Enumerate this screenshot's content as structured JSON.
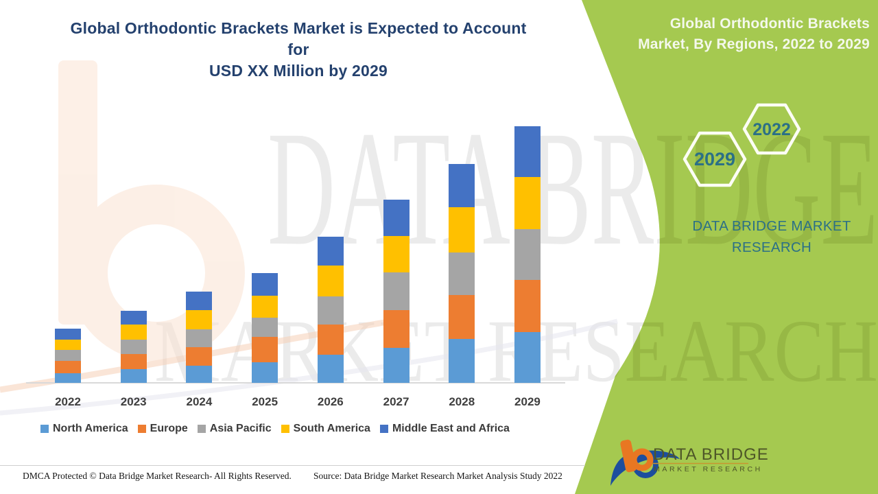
{
  "header": {
    "main_title_line1": "Global Orthodontic Brackets Market is Expected to Account for",
    "main_title_line2": "USD XX Million by 2029",
    "side_title_line1": "Global Orthodontic Brackets",
    "side_title_line2": "Market, By Regions, 2022 to 2029"
  },
  "badges": {
    "hex_front_year": "2029",
    "hex_back_year": "2022"
  },
  "brand": {
    "name_line1": "DATA BRIDGE MARKET",
    "name_line2": "RESEARCH",
    "logo_title": "DATA BRIDGE",
    "logo_subtitle": "MARKET RESEARCH"
  },
  "watermark": {
    "line1": "DATA BRIDGE",
    "line2": "MARKET RESEARCH"
  },
  "footer": {
    "dmca": "DMCA Protected © Data Bridge Market Research- All Rights Reserved.",
    "source": "Source: Data Bridge Market Research Market Analysis Study 2022"
  },
  "colors": {
    "banner_green": "#a5c950",
    "title_blue": "#24416e",
    "teal_text": "#2b7086",
    "axis_gray": "#d9d9d9"
  },
  "chart_data": {
    "type": "bar",
    "stacked": true,
    "title": "Global Orthodontic Brackets Market, By Regions, 2022 to 2029",
    "categories": [
      "2022",
      "2023",
      "2024",
      "2025",
      "2026",
      "2027",
      "2028",
      "2029"
    ],
    "series": [
      {
        "name": "North America",
        "color": "#5b9bd5",
        "values": [
          14,
          20,
          25,
          30,
          41,
          51,
          64,
          74
        ]
      },
      {
        "name": "Europe",
        "color": "#ed7d31",
        "values": [
          18,
          22,
          27,
          37,
          44,
          55,
          64,
          76
        ]
      },
      {
        "name": "Asia Pacific",
        "color": "#a5a5a5",
        "values": [
          16,
          21,
          26,
          28,
          41,
          55,
          62,
          74
        ]
      },
      {
        "name": "South America",
        "color": "#ffc000",
        "values": [
          15,
          22,
          28,
          32,
          45,
          53,
          66,
          76
        ]
      },
      {
        "name": "Middle East and Africa",
        "color": "#4472c4",
        "values": [
          16,
          20,
          27,
          33,
          42,
          53,
          63,
          74
        ]
      }
    ],
    "totals_estimated": [
      79,
      105,
      133,
      160,
      213,
      267,
      319,
      374
    ],
    "unit": "relative height units (actual values undisclosed: USD XX Million)",
    "xlabel": "",
    "ylabel": "",
    "ylim": [
      0,
      400
    ],
    "grid": false,
    "legend_position": "bottom"
  }
}
